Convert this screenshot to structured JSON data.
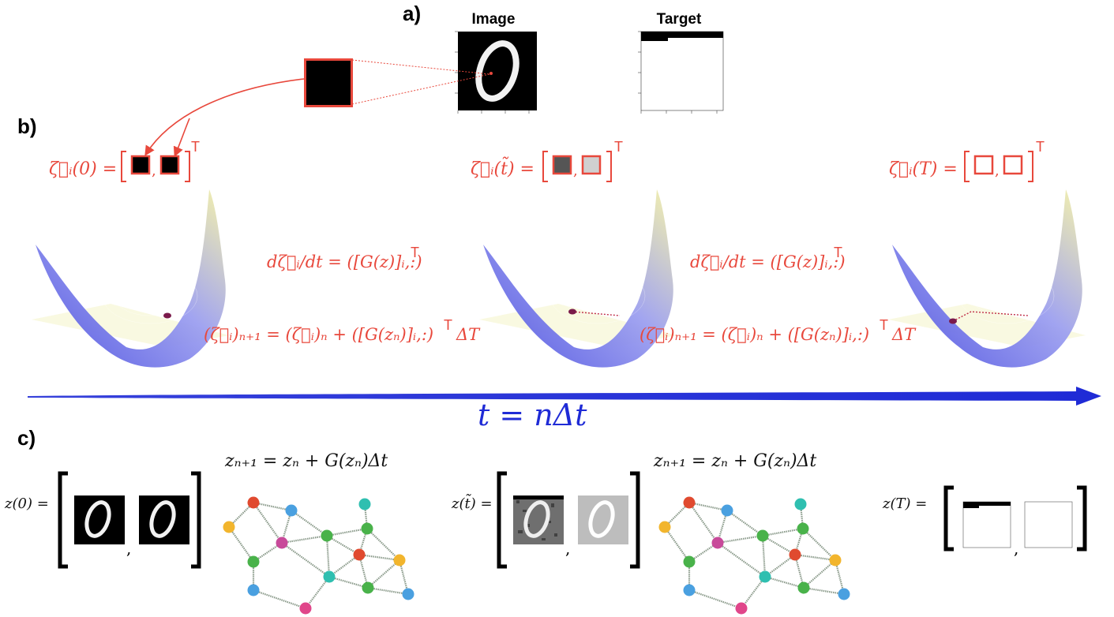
{
  "panel_labels": {
    "a": "a)",
    "b": "b)",
    "c": "c)"
  },
  "panel_a": {
    "image_title": "Image",
    "target_title": "Target"
  },
  "panel_b": {
    "zeta_0": "ζ⃗ᵢ(0) =",
    "zeta_t": "ζ⃗ᵢ(t̃) =",
    "zeta_T": "ζ⃗ᵢ(T) =",
    "transpose": "T",
    "dzeta_dt_1": "dζ⃗ᵢ/dt = ([G(z)]ᵢ,:)",
    "dzeta_dt_2": "dζ⃗ᵢ/dt = ([G(z)]ᵢ,:)",
    "update_1": "(ζ⃗ᵢ)ₙ₊₁ = (ζ⃗ᵢ)ₙ + ([G(zₙ)]ᵢ,:)",
    "update_2": "(ζ⃗ᵢ)ₙ₊₁ = (ζ⃗ᵢ)ₙ + ([G(zₙ)]ᵢ,:)",
    "delta_T": "ΔT",
    "time_label": "t = nΔt"
  },
  "panel_c": {
    "z0": "z(0) =",
    "zt": "z(t̃) =",
    "zT": "z(T) =",
    "update_1": "zₙ₊₁ = zₙ + G(zₙ)Δt",
    "update_2": "zₙ₊₁ = zₙ + G(zₙ)Δt",
    "comma": ","
  },
  "colors": {
    "red": "#e8483c",
    "arrow_blue": "#1f2bd6",
    "surface_blue": "#6f73e6",
    "surface_yellow": "#f3f0a6"
  }
}
